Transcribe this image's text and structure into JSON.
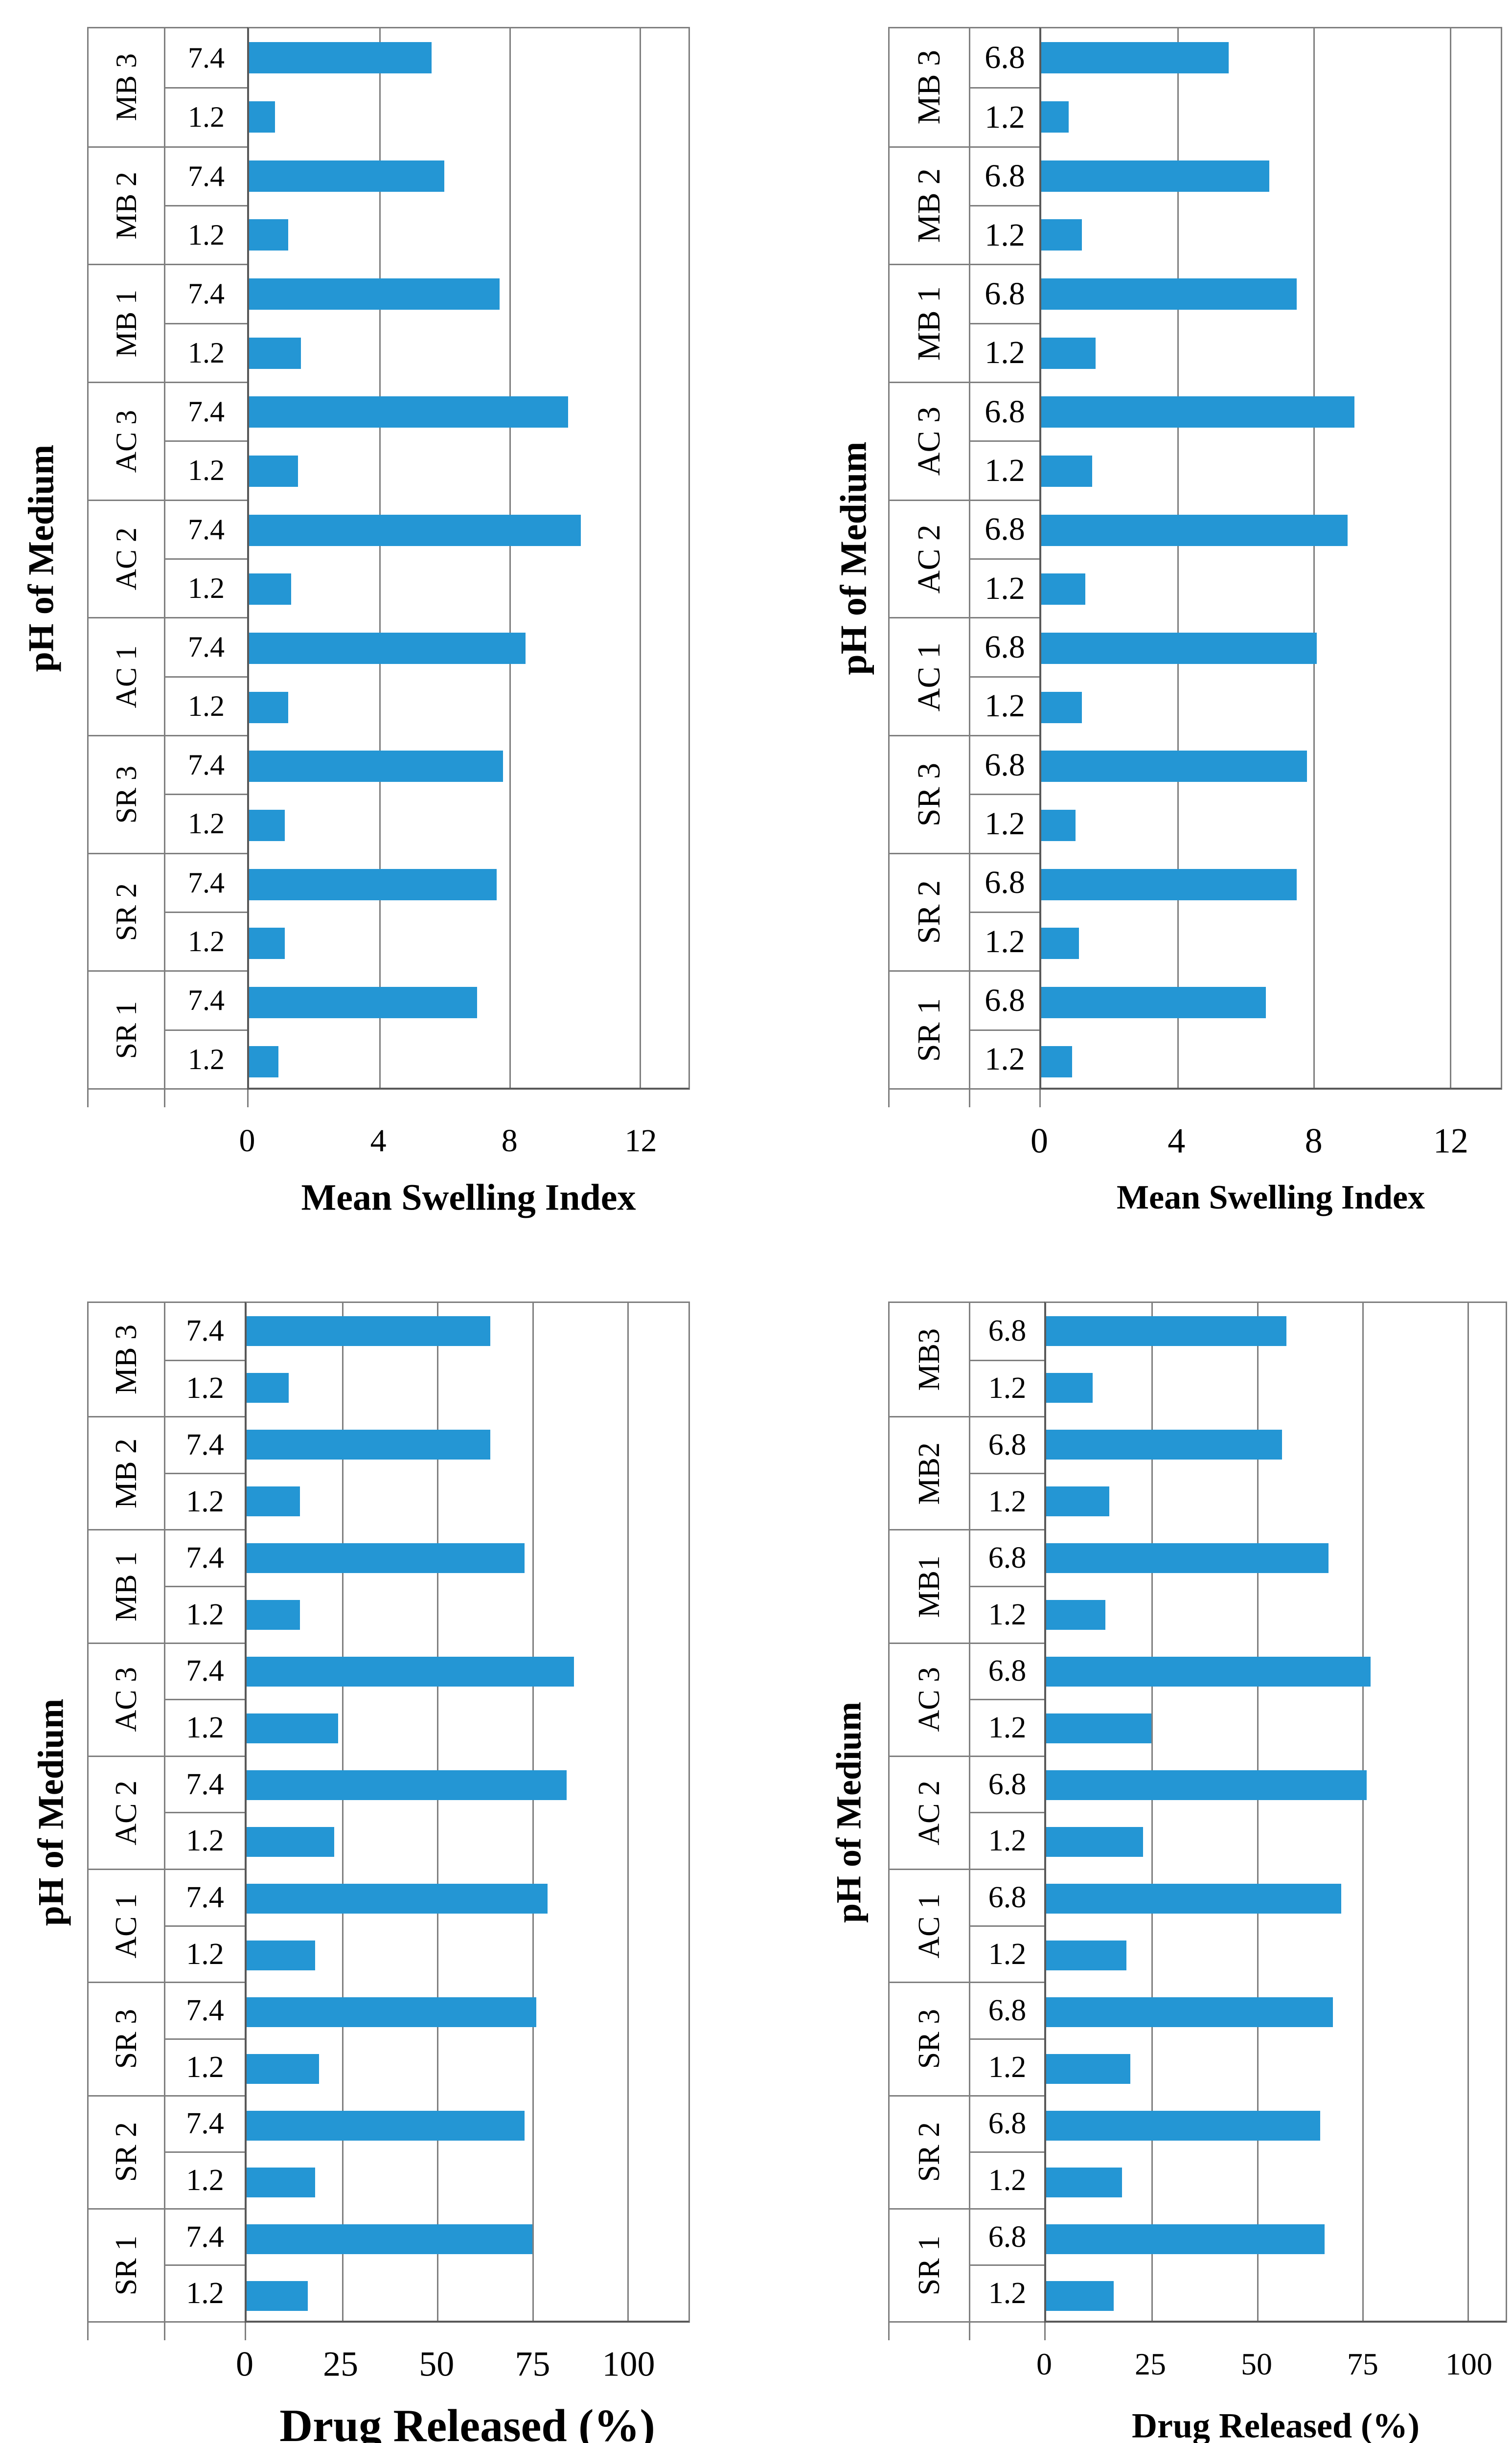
{
  "figure": {
    "background": "#ffffff",
    "bar_color": "#2496d4",
    "grid_color": "#7f7f7f",
    "axis_color": "#595959",
    "text_color": "#000000"
  },
  "chart_data": [
    {
      "id": "swelling-ph74",
      "type": "bar",
      "orientation": "horizontal",
      "xlabel": "Mean Swelling Index",
      "ylabel": "pH of Medium",
      "x_ticks": [
        0,
        4,
        8,
        12
      ],
      "xlim": [
        0,
        13.5
      ],
      "grid": true,
      "legend": false,
      "groups": [
        {
          "label": "MB 3",
          "bars": [
            {
              "ph": "7.4",
              "value": 5.6
            },
            {
              "ph": "1.2",
              "value": 0.8
            }
          ]
        },
        {
          "label": "MB 2",
          "bars": [
            {
              "ph": "7.4",
              "value": 6.0
            },
            {
              "ph": "1.2",
              "value": 1.2
            }
          ]
        },
        {
          "label": "MB 1",
          "bars": [
            {
              "ph": "7.4",
              "value": 7.7
            },
            {
              "ph": "1.2",
              "value": 1.6
            }
          ]
        },
        {
          "label": "AC 3",
          "bars": [
            {
              "ph": "7.4",
              "value": 9.8
            },
            {
              "ph": "1.2",
              "value": 1.5
            }
          ]
        },
        {
          "label": "AC 2",
          "bars": [
            {
              "ph": "7.4",
              "value": 10.2
            },
            {
              "ph": "1.2",
              "value": 1.3
            }
          ]
        },
        {
          "label": "AC 1",
          "bars": [
            {
              "ph": "7.4",
              "value": 8.5
            },
            {
              "ph": "1.2",
              "value": 1.2
            }
          ]
        },
        {
          "label": "SR 3",
          "bars": [
            {
              "ph": "7.4",
              "value": 7.8
            },
            {
              "ph": "1.2",
              "value": 1.1
            }
          ]
        },
        {
          "label": "SR 2",
          "bars": [
            {
              "ph": "7.4",
              "value": 7.6
            },
            {
              "ph": "1.2",
              "value": 1.1
            }
          ]
        },
        {
          "label": "SR 1",
          "bars": [
            {
              "ph": "7.4",
              "value": 7.0
            },
            {
              "ph": "1.2",
              "value": 0.9
            }
          ]
        }
      ]
    },
    {
      "id": "swelling-ph68",
      "type": "bar",
      "orientation": "horizontal",
      "xlabel": "Mean Swelling Index",
      "ylabel": "pH of Medium",
      "x_ticks": [
        0,
        4,
        8,
        12
      ],
      "xlim": [
        0,
        13.5
      ],
      "grid": true,
      "legend": false,
      "groups": [
        {
          "label": "MB 3",
          "bars": [
            {
              "ph": "6.8",
              "value": 5.5
            },
            {
              "ph": "1.2",
              "value": 0.8
            }
          ]
        },
        {
          "label": "MB 2",
          "bars": [
            {
              "ph": "6.8",
              "value": 6.7
            },
            {
              "ph": "1.2",
              "value": 1.2
            }
          ]
        },
        {
          "label": "MB 1",
          "bars": [
            {
              "ph": "6.8",
              "value": 7.5
            },
            {
              "ph": "1.2",
              "value": 1.6
            }
          ]
        },
        {
          "label": "AC 3",
          "bars": [
            {
              "ph": "6.8",
              "value": 9.2
            },
            {
              "ph": "1.2",
              "value": 1.5
            }
          ]
        },
        {
          "label": "AC 2",
          "bars": [
            {
              "ph": "6.8",
              "value": 9.0
            },
            {
              "ph": "1.2",
              "value": 1.3
            }
          ]
        },
        {
          "label": "AC 1",
          "bars": [
            {
              "ph": "6.8",
              "value": 8.1
            },
            {
              "ph": "1.2",
              "value": 1.2
            }
          ]
        },
        {
          "label": "SR 3",
          "bars": [
            {
              "ph": "6.8",
              "value": 7.8
            },
            {
              "ph": "1.2",
              "value": 1.0
            }
          ]
        },
        {
          "label": "SR 2",
          "bars": [
            {
              "ph": "6.8",
              "value": 7.5
            },
            {
              "ph": "1.2",
              "value": 1.1
            }
          ]
        },
        {
          "label": "SR 1",
          "bars": [
            {
              "ph": "6.8",
              "value": 6.6
            },
            {
              "ph": "1.2",
              "value": 0.9
            }
          ]
        }
      ]
    },
    {
      "id": "release-ph74",
      "type": "bar",
      "orientation": "horizontal",
      "xlabel": "Drug Released (%)",
      "ylabel": "pH of Medium",
      "x_ticks": [
        0,
        25,
        50,
        75,
        100
      ],
      "xlim": [
        0,
        116
      ],
      "grid": true,
      "legend": false,
      "groups": [
        {
          "label": "MB 3",
          "bars": [
            {
              "ph": "7.4",
              "value": 64
            },
            {
              "ph": "1.2",
              "value": 11
            }
          ]
        },
        {
          "label": "MB 2",
          "bars": [
            {
              "ph": "7.4",
              "value": 64
            },
            {
              "ph": "1.2",
              "value": 14
            }
          ]
        },
        {
          "label": "MB 1",
          "bars": [
            {
              "ph": "7.4",
              "value": 73
            },
            {
              "ph": "1.2",
              "value": 14
            }
          ]
        },
        {
          "label": "AC 3",
          "bars": [
            {
              "ph": "7.4",
              "value": 86
            },
            {
              "ph": "1.2",
              "value": 24
            }
          ]
        },
        {
          "label": "AC 2",
          "bars": [
            {
              "ph": "7.4",
              "value": 84
            },
            {
              "ph": "1.2",
              "value": 23
            }
          ]
        },
        {
          "label": "AC 1",
          "bars": [
            {
              "ph": "7.4",
              "value": 79
            },
            {
              "ph": "1.2",
              "value": 18
            }
          ]
        },
        {
          "label": "SR 3",
          "bars": [
            {
              "ph": "7.4",
              "value": 76
            },
            {
              "ph": "1.2",
              "value": 19
            }
          ]
        },
        {
          "label": "SR 2",
          "bars": [
            {
              "ph": "7.4",
              "value": 73
            },
            {
              "ph": "1.2",
              "value": 18
            }
          ]
        },
        {
          "label": "SR 1",
          "bars": [
            {
              "ph": "7.4",
              "value": 75
            },
            {
              "ph": "1.2",
              "value": 16
            }
          ]
        }
      ]
    },
    {
      "id": "release-ph68",
      "type": "bar",
      "orientation": "horizontal",
      "xlabel": "Drug Released (%)",
      "ylabel": "pH of Medium",
      "x_ticks": [
        0,
        25,
        50,
        75,
        100
      ],
      "xlim": [
        0,
        109
      ],
      "grid": true,
      "legend": false,
      "groups": [
        {
          "label": "MB3",
          "bars": [
            {
              "ph": "6.8",
              "value": 57
            },
            {
              "ph": "1.2",
              "value": 11
            }
          ]
        },
        {
          "label": "MB2",
          "bars": [
            {
              "ph": "6.8",
              "value": 56
            },
            {
              "ph": "1.2",
              "value": 15
            }
          ]
        },
        {
          "label": "MB1",
          "bars": [
            {
              "ph": "6.8",
              "value": 67
            },
            {
              "ph": "1.2",
              "value": 14
            }
          ]
        },
        {
          "label": "AC 3",
          "bars": [
            {
              "ph": "6.8",
              "value": 77
            },
            {
              "ph": "1.2",
              "value": 25
            }
          ]
        },
        {
          "label": "AC 2",
          "bars": [
            {
              "ph": "6.8",
              "value": 76
            },
            {
              "ph": "1.2",
              "value": 23
            }
          ]
        },
        {
          "label": "AC 1",
          "bars": [
            {
              "ph": "6.8",
              "value": 70
            },
            {
              "ph": "1.2",
              "value": 19
            }
          ]
        },
        {
          "label": "SR 3",
          "bars": [
            {
              "ph": "6.8",
              "value": 68
            },
            {
              "ph": "1.2",
              "value": 20
            }
          ]
        },
        {
          "label": "SR 2",
          "bars": [
            {
              "ph": "6.8",
              "value": 65
            },
            {
              "ph": "1.2",
              "value": 18
            }
          ]
        },
        {
          "label": "SR 1",
          "bars": [
            {
              "ph": "6.8",
              "value": 66
            },
            {
              "ph": "1.2",
              "value": 16
            }
          ]
        }
      ]
    }
  ]
}
